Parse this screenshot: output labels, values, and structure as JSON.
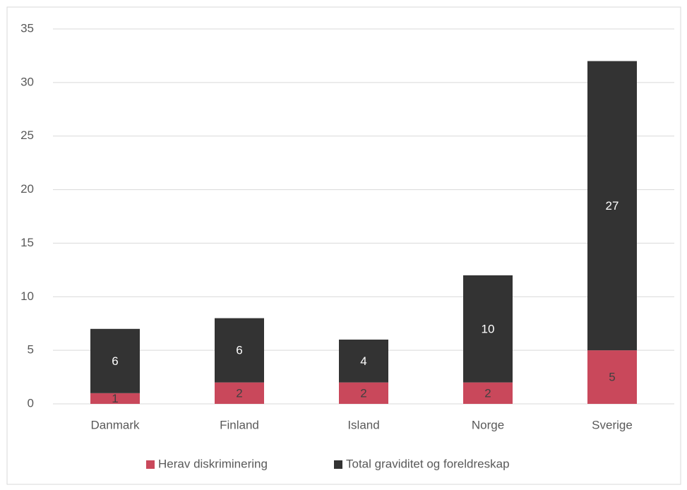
{
  "chart_data": {
    "type": "stacked_bar",
    "categories": [
      "Danmark",
      "Finland",
      "Island",
      "Norge",
      "Sverige"
    ],
    "series": [
      {
        "name": "Herav diskriminering",
        "color": "#c9485b",
        "values": [
          1,
          2,
          2,
          2,
          5
        ]
      },
      {
        "name": "Total graviditet og foreldreskap",
        "color": "#333333",
        "values": [
          6,
          6,
          4,
          10,
          27
        ]
      }
    ],
    "ylim": [
      0,
      35
    ],
    "yticks": [
      0,
      5,
      10,
      15,
      20,
      25,
      30,
      35
    ],
    "grid": true,
    "legend": "bottom"
  }
}
